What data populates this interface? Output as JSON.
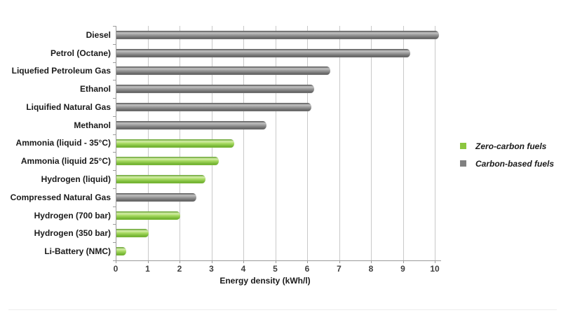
{
  "chart_data": {
    "type": "bar",
    "orientation": "horizontal",
    "title": "",
    "xlabel": "Energy density (kWh/l)",
    "ylabel": "",
    "xlim": [
      0,
      10
    ],
    "xticks": [
      0,
      1,
      2,
      3,
      4,
      5,
      6,
      7,
      8,
      9,
      10
    ],
    "grid": true,
    "legend_position": "right",
    "categories": [
      "Diesel",
      "Petrol (Octane)",
      "Liquefied Petroleum Gas",
      "Ethanol",
      "Liquified Natural Gas",
      "Methanol",
      "Ammonia (liquid - 35°C)",
      "Ammonia (liquid 25°C)",
      "Hydrogen (liquid)",
      "Compressed Natural Gas",
      "Hydrogen (700 bar)",
      "Hydrogen (350 bar)",
      "Li-Battery (NMC)"
    ],
    "values": [
      10.1,
      9.2,
      6.7,
      6.2,
      6.1,
      4.7,
      3.7,
      3.2,
      2.8,
      2.5,
      2.0,
      1.0,
      0.3
    ],
    "groups": [
      "carbon",
      "carbon",
      "carbon",
      "carbon",
      "carbon",
      "carbon",
      "zero",
      "zero",
      "zero",
      "carbon",
      "zero",
      "zero",
      "zero"
    ],
    "series_colors": {
      "zero": "#8cc63f",
      "carbon": "#808080"
    },
    "legend": [
      {
        "key": "zero",
        "label": "Zero-carbon fuels",
        "color": "#8cc63f"
      },
      {
        "key": "carbon",
        "label": "Carbon-based fuels",
        "color": "#808080"
      }
    ]
  }
}
